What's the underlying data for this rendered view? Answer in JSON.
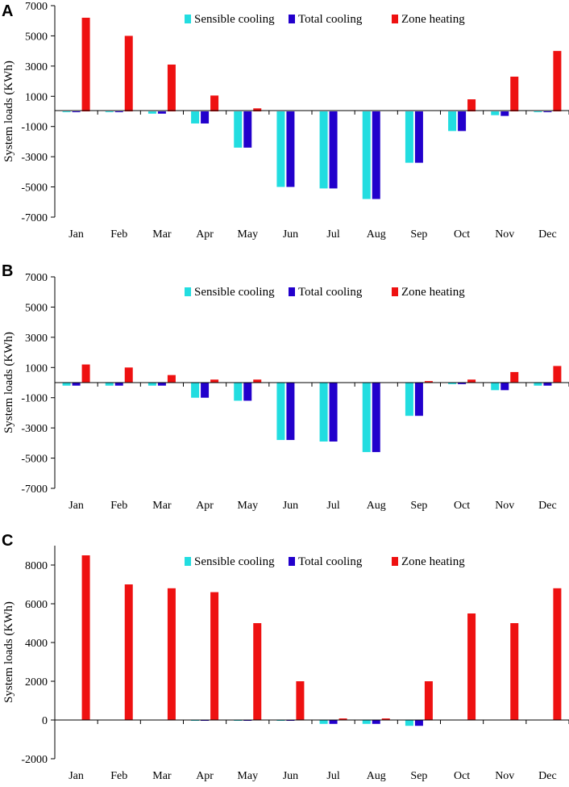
{
  "colors": {
    "sensible": "#22DDE0",
    "total": "#2200CC",
    "heating": "#EE1111"
  },
  "chart_data": [
    {
      "panel_label": "A",
      "type": "bar",
      "ylabel": "System loads (KWh)",
      "ylim": [
        -7000,
        7000
      ],
      "yticks": [
        -7000,
        -5000,
        -3000,
        -1000,
        1000,
        3000,
        5000,
        7000
      ],
      "categories": [
        "Jan",
        "Feb",
        "Mar",
        "Apr",
        "May",
        "Jun",
        "Jul",
        "Aug",
        "Sep",
        "Oct",
        "Nov",
        "Dec"
      ],
      "series": [
        {
          "name": "Sensible cooling",
          "values": [
            -40,
            -40,
            -150,
            -800,
            -2400,
            -5000,
            -5100,
            -5800,
            -3400,
            -1300,
            -250,
            -40
          ]
        },
        {
          "name": "Total cooling",
          "values": [
            -40,
            -40,
            -150,
            -800,
            -2400,
            -5000,
            -5100,
            -5800,
            -3400,
            -1300,
            -300,
            -40
          ]
        },
        {
          "name": "Zone heating",
          "values": [
            6200,
            5000,
            3100,
            1050,
            200,
            0,
            0,
            0,
            0,
            800,
            2300,
            4000
          ]
        }
      ]
    },
    {
      "panel_label": "B",
      "type": "bar",
      "ylabel": "System loads (KWh)",
      "ylim": [
        -7000,
        7000
      ],
      "yticks": [
        -7000,
        -5000,
        -3000,
        -1000,
        1000,
        3000,
        5000,
        7000
      ],
      "categories": [
        "Jan",
        "Feb",
        "Mar",
        "Apr",
        "May",
        "Jun",
        "Jul",
        "Aug",
        "Sep",
        "Oct",
        "Nov",
        "Dec"
      ],
      "series": [
        {
          "name": "Sensible cooling",
          "values": [
            -200,
            -200,
            -200,
            -1000,
            -1200,
            -3800,
            -3900,
            -4600,
            -2200,
            -100,
            -500,
            -200
          ]
        },
        {
          "name": "Total cooling",
          "values": [
            -200,
            -200,
            -200,
            -1000,
            -1200,
            -3800,
            -3900,
            -4600,
            -2200,
            -100,
            -500,
            -200
          ]
        },
        {
          "name": "Zone heating",
          "values": [
            1200,
            1000,
            500,
            200,
            200,
            0,
            0,
            0,
            100,
            200,
            700,
            1100
          ]
        }
      ]
    },
    {
      "panel_label": "C",
      "type": "bar",
      "ylabel": "System loads (KWh)",
      "ylim": [
        -2000,
        9000
      ],
      "yticks": [
        -2000,
        0,
        2000,
        4000,
        6000,
        8000
      ],
      "categories": [
        "Jan",
        "Feb",
        "Mar",
        "Apr",
        "May",
        "Jun",
        "Jul",
        "Aug",
        "Sep",
        "Oct",
        "Nov",
        "Dec"
      ],
      "series": [
        {
          "name": "Sensible cooling",
          "values": [
            0,
            0,
            0,
            -30,
            -30,
            -30,
            -200,
            -200,
            -300,
            0,
            0,
            0
          ]
        },
        {
          "name": "Total cooling",
          "values": [
            0,
            0,
            0,
            -30,
            -30,
            -30,
            -200,
            -200,
            -300,
            0,
            0,
            0
          ]
        },
        {
          "name": "Zone heating",
          "values": [
            8500,
            7000,
            6800,
            6600,
            5000,
            2000,
            80,
            80,
            2000,
            5500,
            5000,
            6800
          ]
        }
      ]
    }
  ]
}
